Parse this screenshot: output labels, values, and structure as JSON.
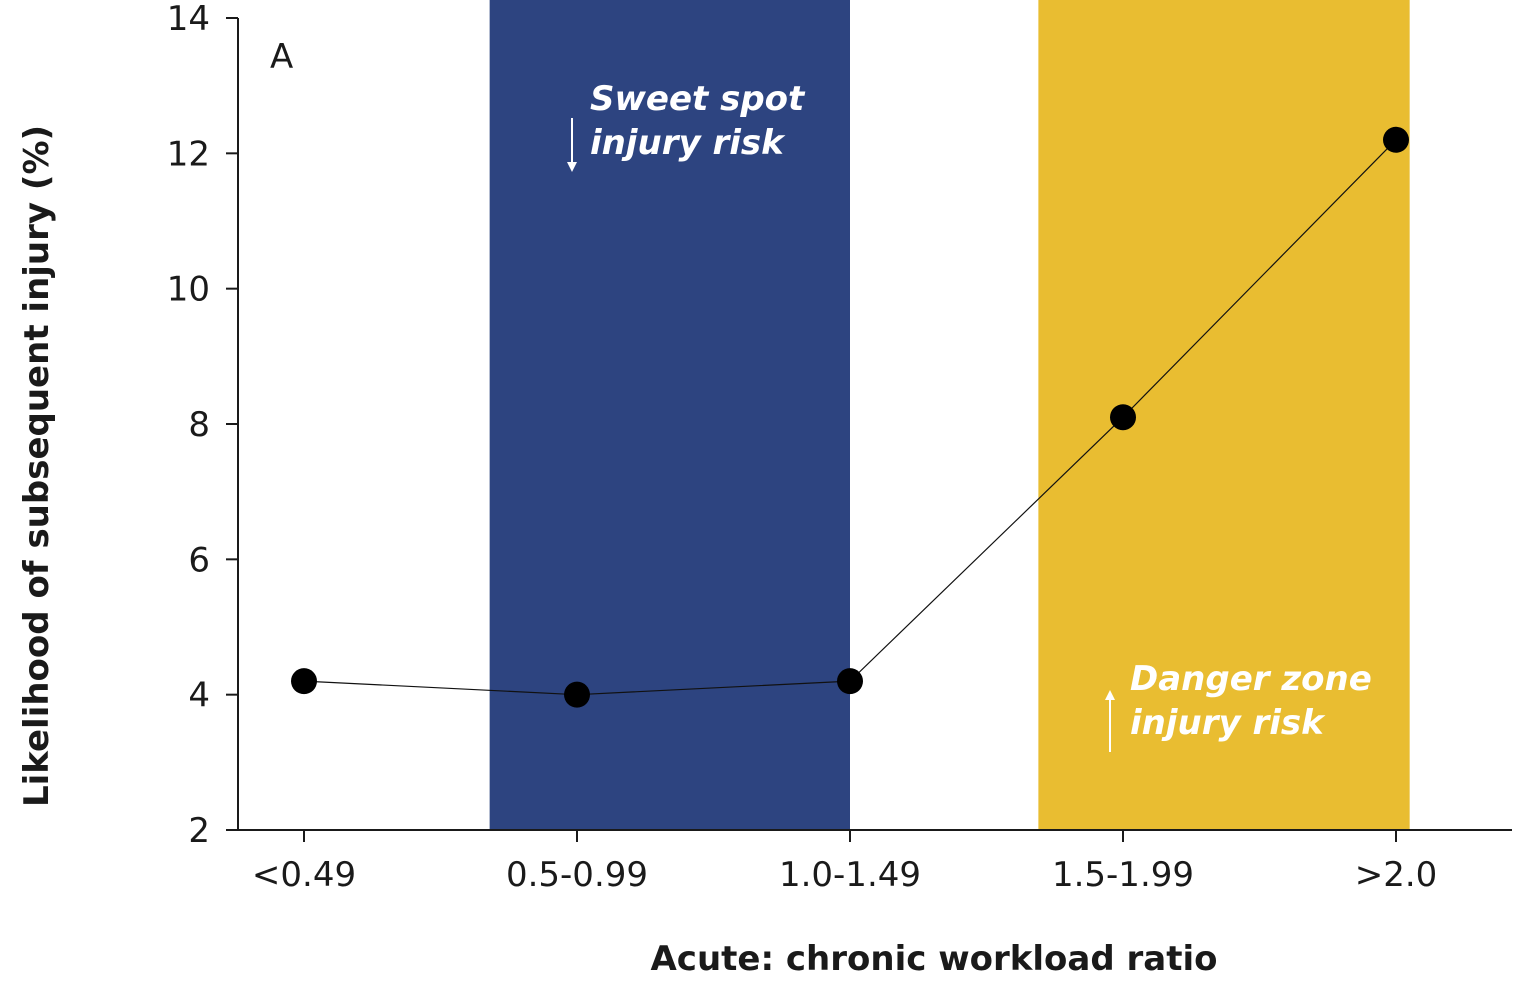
{
  "chart_data": {
    "type": "line",
    "panel_label": "A",
    "xlabel": "Acute: chronic workload ratio",
    "ylabel": "Likelihood of subsequent injury (%)",
    "categories": [
      "<0.49",
      "0.5-0.99",
      "1.0-1.49",
      "1.5-1.99",
      ">2.0"
    ],
    "values": [
      4.2,
      4.0,
      4.2,
      8.1,
      12.2
    ],
    "ylim": [
      2,
      14
    ],
    "yticks": [
      "2",
      "4",
      "6",
      "8",
      "10",
      "12",
      "14"
    ],
    "grid": false,
    "colors": {
      "line": "#111111",
      "marker": "#000000",
      "sweet_band": "#2d4480",
      "danger_band": "#e9bd31"
    },
    "bands": [
      {
        "name": "sweet-spot",
        "from_category": 0.68,
        "to_category": 2.0,
        "label_line1": "Sweet spot",
        "label_line2": "injury risk",
        "arrow": "down"
      },
      {
        "name": "danger-zone",
        "from_category": 2.69,
        "to_category": 4.05,
        "label_line1": "Danger zone",
        "label_line2": "injury risk",
        "arrow": "up"
      }
    ]
  }
}
